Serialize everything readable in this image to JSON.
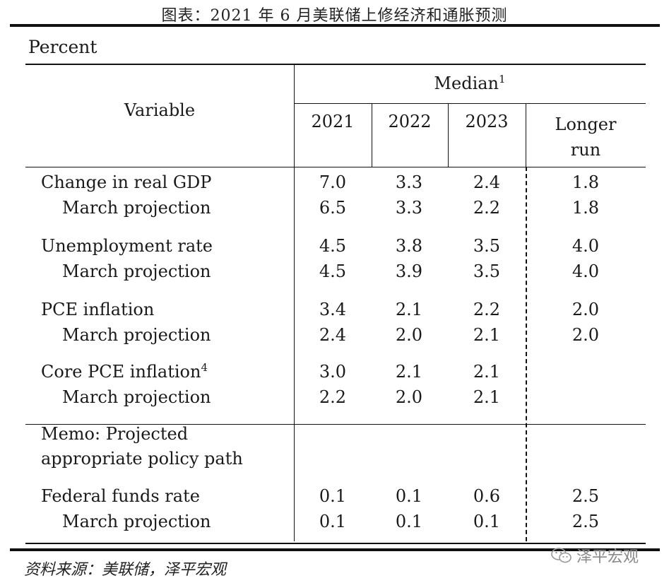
{
  "title": "图表：2021 年 6 月美联储上修经济和通胀预测",
  "unit_label": "Percent",
  "header": {
    "variable": "Variable",
    "median": "Median",
    "median_note": "1",
    "years": [
      "2021",
      "2022",
      "2023"
    ],
    "longer_run_line1": "Longer",
    "longer_run_line2": "run"
  },
  "rows": [
    {
      "label": "Change in real GDP",
      "note": "",
      "values": [
        "7.0",
        "3.3",
        "2.4",
        "1.8"
      ]
    },
    {
      "label": "March projection",
      "note": "",
      "values": [
        "6.5",
        "3.3",
        "2.2",
        "1.8"
      ]
    },
    {
      "label": "Unemployment rate",
      "note": "",
      "values": [
        "4.5",
        "3.8",
        "3.5",
        "4.0"
      ]
    },
    {
      "label": "March projection",
      "note": "",
      "values": [
        "4.5",
        "3.9",
        "3.5",
        "4.0"
      ]
    },
    {
      "label": "PCE inflation",
      "note": "",
      "values": [
        "3.4",
        "2.1",
        "2.2",
        "2.0"
      ]
    },
    {
      "label": "March projection",
      "note": "",
      "values": [
        "2.4",
        "2.0",
        "2.1",
        "2.0"
      ]
    },
    {
      "label": "Core PCE inflation",
      "note": "4",
      "values": [
        "3.0",
        "2.1",
        "2.1",
        ""
      ]
    },
    {
      "label": "March projection",
      "note": "",
      "values": [
        "2.2",
        "2.0",
        "2.1",
        ""
      ]
    }
  ],
  "memo": {
    "line1": "Memo: Projected",
    "line2": "appropriate policy path"
  },
  "memo_rows": [
    {
      "label": "Federal funds rate",
      "values": [
        "0.1",
        "0.1",
        "0.6",
        "2.5"
      ]
    },
    {
      "label": "March projection",
      "values": [
        "0.1",
        "0.1",
        "0.1",
        "2.5"
      ]
    }
  ],
  "source": "资料来源：美联储，泽平宏观",
  "watermark": "泽平宏观",
  "watermark_icon": "wechat-icon"
}
